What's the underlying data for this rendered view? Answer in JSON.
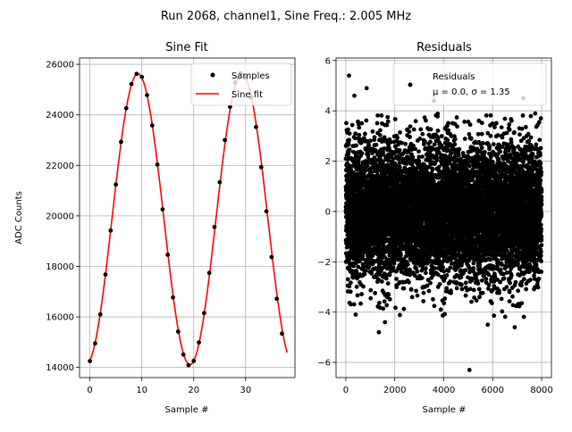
{
  "suptitle": "Run 2068, channel1, Sine Freq.: 2.005 MHz",
  "chart_data": [
    {
      "type": "scatter+line",
      "title": "Sine Fit",
      "xlabel": "Sample #",
      "ylabel": "ADC Counts",
      "xlim": [
        -2,
        39.5
      ],
      "ylim": [
        13600,
        26250
      ],
      "xticks": [
        0,
        10,
        20,
        30
      ],
      "yticks": [
        14000,
        16000,
        18000,
        20000,
        22000,
        24000,
        26000
      ],
      "grid": true,
      "legend": {
        "placement": "top-right",
        "entries": [
          "Samples",
          "Sine fit"
        ]
      },
      "series": [
        {
          "name": "Samples",
          "style": "points",
          "color": "#000000",
          "x": [
            0,
            1,
            2,
            3,
            4,
            5,
            6,
            7,
            8,
            9,
            10,
            11,
            12,
            13,
            14,
            15,
            16,
            17,
            18,
            19,
            20,
            21,
            22,
            23,
            24,
            25,
            26,
            27,
            28,
            29,
            30,
            31,
            32,
            33,
            34,
            35,
            36,
            37
          ],
          "y": [
            14250,
            14950,
            16100,
            17680,
            19420,
            21240,
            22930,
            24260,
            25220,
            25620,
            25500,
            24780,
            23580,
            22030,
            20260,
            18460,
            16770,
            15420,
            14510,
            14090,
            14260,
            14990,
            16150,
            17740,
            19560,
            21330,
            23000,
            24320,
            25280,
            25650,
            25460,
            24680,
            23520,
            21930,
            20180,
            18370,
            16720,
            15340
          ]
        },
        {
          "name": "Sine fit",
          "style": "line",
          "color": "#ff0000",
          "function": {
            "offset": 19870,
            "amplitude": 5760,
            "period": 20.04,
            "phase_shift_x": 4.24
          },
          "x_range": [
            0,
            38
          ]
        }
      ]
    },
    {
      "type": "scatter",
      "title": "Residuals",
      "xlabel": "Sample #",
      "ylabel": "",
      "xlim": [
        -400,
        8400
      ],
      "ylim": [
        -6.6,
        6.1
      ],
      "xticks": [
        0,
        2000,
        4000,
        6000,
        8000
      ],
      "yticks": [
        -6,
        -4,
        -2,
        0,
        2,
        4,
        6
      ],
      "grid": true,
      "legend": {
        "placement": "top-right",
        "entries": [
          "Residuals",
          "μ = 0.0, σ = 1.35"
        ]
      },
      "series": [
        {
          "name": "Residuals",
          "style": "points",
          "color": "#000000",
          "count": 8000,
          "mean": 0.0,
          "sigma": 1.35,
          "outliers": [
            {
              "x": 130,
              "y": 5.4
            },
            {
              "x": 350,
              "y": 4.6
            },
            {
              "x": 850,
              "y": 4.9
            },
            {
              "x": 3600,
              "y": 4.4
            },
            {
              "x": 5050,
              "y": -6.3
            },
            {
              "x": 7250,
              "y": 4.5
            },
            {
              "x": 1350,
              "y": -4.8
            },
            {
              "x": 6900,
              "y": -4.6
            },
            {
              "x": 5800,
              "y": -4.5
            },
            {
              "x": 1600,
              "y": -4.4
            },
            {
              "x": 400,
              "y": -4.1
            }
          ]
        }
      ]
    }
  ]
}
